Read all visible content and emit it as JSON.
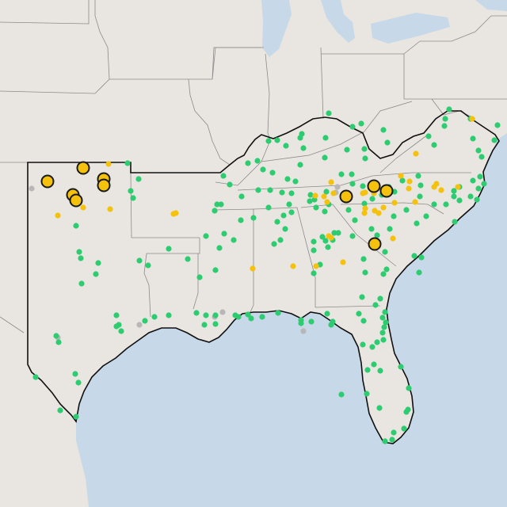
{
  "map": {
    "colors": {
      "land": "#e9e6e1",
      "water": "#c7d8e8",
      "border": "#8b8b8b",
      "region_outline": "#111111",
      "marker_green": "#2ecc71",
      "marker_yellow": "#f4c20d",
      "marker_gray": "#b7b7b7"
    },
    "legend": null,
    "markers": {
      "green": [
        [
          161,
          206
        ],
        [
          175,
          226
        ],
        [
          165,
          241
        ],
        [
          168,
          250
        ],
        [
          96,
          285
        ],
        [
          100,
          318
        ],
        [
          102,
          326
        ],
        [
          124,
          332
        ],
        [
          121,
          346
        ],
        [
          103,
          358
        ],
        [
          176,
          329
        ],
        [
          187,
          335
        ],
        [
          213,
          314
        ],
        [
          147,
          398
        ],
        [
          150,
          410
        ],
        [
          153,
          418
        ],
        [
          147,
          412
        ],
        [
          183,
          405
        ],
        [
          195,
          400
        ],
        [
          213,
          398
        ],
        [
          248,
          395
        ],
        [
          260,
          398
        ],
        [
          258,
          410
        ],
        [
          272,
          409
        ],
        [
          272,
          398
        ],
        [
          297,
          398
        ],
        [
          313,
          397
        ],
        [
          301,
          400
        ],
        [
          351,
          395
        ],
        [
          380,
          404
        ],
        [
          380,
          408
        ],
        [
          413,
          396
        ],
        [
          420,
          406
        ],
        [
          453,
          396
        ],
        [
          459,
          405
        ],
        [
          470,
          438
        ],
        [
          472,
          460
        ],
        [
          480,
          468
        ],
        [
          486,
          394
        ],
        [
          483,
          401
        ],
        [
          487,
          407
        ],
        [
          485,
          413
        ],
        [
          483,
          420
        ],
        [
          484,
          429
        ],
        [
          476,
          432
        ],
        [
          458,
          435
        ],
        [
          506,
          463
        ],
        [
          516,
          490
        ],
        [
          515,
          517
        ],
        [
          513,
          520
        ],
        [
          510,
          541
        ],
        [
          497,
          546
        ],
        [
          495,
          555
        ],
        [
          486,
          557
        ],
        [
          479,
          515
        ],
        [
          464,
          467
        ],
        [
          463,
          497
        ],
        [
          431,
          498
        ],
        [
          71,
          424
        ],
        [
          74,
          432
        ],
        [
          45,
          476
        ],
        [
          95,
          472
        ],
        [
          99,
          483
        ],
        [
          76,
          518
        ],
        [
          96,
          526
        ],
        [
          237,
          327
        ],
        [
          252,
          350
        ],
        [
          272,
          341
        ],
        [
          277,
          313
        ],
        [
          283,
          295
        ],
        [
          295,
          303
        ],
        [
          274,
          258
        ],
        [
          271,
          266
        ],
        [
          279,
          258
        ],
        [
          290,
          233
        ],
        [
          282,
          222
        ],
        [
          305,
          248
        ],
        [
          326,
          240
        ],
        [
          332,
          214
        ],
        [
          344,
          218
        ],
        [
          341,
          240
        ],
        [
          356,
          243
        ],
        [
          363,
          226
        ],
        [
          368,
          244
        ],
        [
          365,
          258
        ],
        [
          368,
          268
        ],
        [
          358,
          272
        ],
        [
          350,
          280
        ],
        [
          360,
          289
        ],
        [
          354,
          303
        ],
        [
          346,
          308
        ],
        [
          339,
          262
        ],
        [
          320,
          275
        ],
        [
          304,
          278
        ],
        [
          260,
          298
        ],
        [
          361,
          184
        ],
        [
          350,
          177
        ],
        [
          339,
          178
        ],
        [
          379,
          174
        ],
        [
          381,
          169
        ],
        [
          383,
          187
        ],
        [
          415,
          143
        ],
        [
          411,
          174
        ],
        [
          410,
          199
        ],
        [
          379,
          208
        ],
        [
          373,
          229
        ],
        [
          392,
          246
        ],
        [
          397,
          252
        ],
        [
          412,
          242
        ],
        [
          415,
          258
        ],
        [
          410,
          267
        ],
        [
          433,
          250
        ],
        [
          440,
          265
        ],
        [
          448,
          278
        ],
        [
          445,
          298
        ],
        [
          422,
          294
        ],
        [
          420,
          303
        ],
        [
          411,
          304
        ],
        [
          414,
          312
        ],
        [
          396,
          305
        ],
        [
          396,
          316
        ],
        [
          404,
          334
        ],
        [
          427,
          294
        ],
        [
          469,
          289
        ],
        [
          492,
          289
        ],
        [
          497,
          273
        ],
        [
          513,
          265
        ],
        [
          526,
          282
        ],
        [
          538,
          273
        ],
        [
          548,
          258
        ],
        [
          573,
          241
        ],
        [
          573,
          248
        ],
        [
          580,
          236
        ],
        [
          580,
          253
        ],
        [
          574,
          280
        ],
        [
          563,
          258
        ],
        [
          594,
          248
        ],
        [
          602,
          252
        ],
        [
          604,
          238
        ],
        [
          606,
          223
        ],
        [
          597,
          228
        ],
        [
          611,
          232
        ],
        [
          530,
          248
        ],
        [
          531,
          234
        ],
        [
          528,
          222
        ],
        [
          508,
          228
        ],
        [
          498,
          242
        ],
        [
          491,
          236
        ],
        [
          482,
          246
        ],
        [
          470,
          251
        ],
        [
          460,
          257
        ],
        [
          458,
          235
        ],
        [
          445,
          232
        ],
        [
          444,
          220
        ],
        [
          431,
          220
        ],
        [
          461,
          200
        ],
        [
          460,
          188
        ],
        [
          438,
          189
        ],
        [
          445,
          160
        ],
        [
          456,
          156
        ],
        [
          484,
          164
        ],
        [
          489,
          180
        ],
        [
          541,
          172
        ],
        [
          548,
          183
        ],
        [
          561,
          159
        ],
        [
          562,
          150
        ],
        [
          567,
          138
        ],
        [
          594,
          150
        ],
        [
          597,
          175
        ],
        [
          604,
          190
        ],
        [
          608,
          198
        ],
        [
          624,
          177
        ],
        [
          628,
          158
        ],
        [
          523,
          323
        ],
        [
          532,
          325
        ],
        [
          529,
          344
        ],
        [
          488,
          340
        ],
        [
          484,
          346
        ],
        [
          461,
          344
        ],
        [
          459,
          327
        ],
        [
          476,
          297
        ],
        [
          486,
          318
        ],
        [
          480,
          377
        ],
        [
          474,
          385
        ],
        [
          407,
          299
        ],
        [
          396,
          345
        ],
        [
          317,
          402
        ],
        [
          331,
          400
        ],
        [
          393,
          406
        ],
        [
          418,
          410
        ],
        [
          457,
          375
        ],
        [
          313,
          206
        ],
        [
          325,
          203
        ],
        [
          391,
          254
        ],
        [
          399,
          262
        ]
      ],
      "yellow_small": [
        [
          73,
          272
        ],
        [
          139,
          264
        ],
        [
          137,
          207
        ],
        [
          105,
          262
        ],
        [
          219,
          270
        ],
        [
          222,
          269
        ],
        [
          319,
          339
        ],
        [
          370,
          336
        ],
        [
          399,
          336
        ],
        [
          433,
          331
        ],
        [
          415,
          298
        ],
        [
          418,
          300
        ],
        [
          398,
          247
        ],
        [
          409,
          248
        ],
        [
          421,
          244
        ],
        [
          413,
          255
        ],
        [
          461,
          243
        ],
        [
          472,
          244
        ],
        [
          461,
          263
        ],
        [
          460,
          269
        ],
        [
          478,
          269
        ],
        [
          484,
          262
        ],
        [
          498,
          256
        ],
        [
          517,
          229
        ],
        [
          516,
          238
        ],
        [
          524,
          255
        ],
        [
          551,
          232
        ],
        [
          548,
          236
        ],
        [
          557,
          240
        ],
        [
          578,
          236
        ],
        [
          596,
          150
        ],
        [
          506,
          222
        ],
        [
          525,
          194
        ],
        [
          418,
          230
        ],
        [
          458,
          244
        ],
        [
          473,
          266
        ],
        [
          496,
          301
        ]
      ],
      "yellow_large": [
        [
          60,
          229
        ],
        [
          105,
          212
        ],
        [
          131,
          226
        ],
        [
          131,
          234
        ],
        [
          92,
          246
        ],
        [
          96,
          253
        ],
        [
          437,
          248
        ],
        [
          472,
          235
        ],
        [
          488,
          241
        ],
        [
          473,
          308
        ]
      ],
      "gray": [
        [
          73,
          426
        ],
        [
          426,
          236
        ],
        [
          424,
          243
        ],
        [
          434,
          245
        ],
        [
          281,
          394
        ],
        [
          271,
          400
        ],
        [
          176,
          410
        ],
        [
          40,
          238
        ],
        [
          383,
          418
        ]
      ]
    }
  }
}
